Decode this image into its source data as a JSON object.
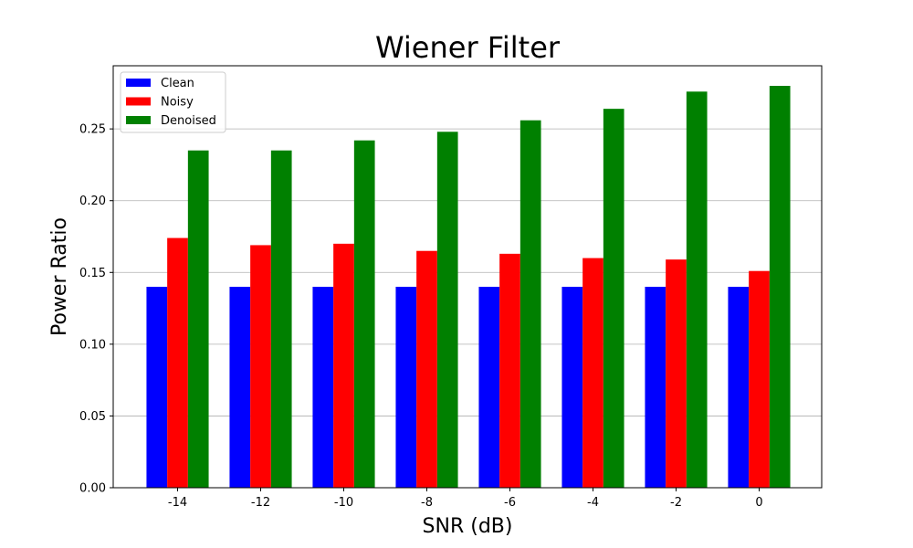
{
  "chart_data": {
    "type": "bar",
    "title": "Wiener Filter",
    "xlabel": "SNR (dB)",
    "ylabel": "Power Ratio",
    "categories": [
      "-14",
      "-12",
      "-10",
      "-8",
      "-6",
      "-4",
      "-2",
      "0"
    ],
    "series": [
      {
        "name": "Clean",
        "color": "#0000ff",
        "values": [
          0.14,
          0.14,
          0.14,
          0.14,
          0.14,
          0.14,
          0.14,
          0.14
        ]
      },
      {
        "name": "Noisy",
        "color": "#ff0000",
        "values": [
          0.174,
          0.169,
          0.17,
          0.165,
          0.163,
          0.16,
          0.159,
          0.151
        ]
      },
      {
        "name": "Denoised",
        "color": "#008000",
        "values": [
          0.235,
          0.235,
          0.242,
          0.248,
          0.256,
          0.264,
          0.276,
          0.28
        ]
      }
    ],
    "ylim": [
      0,
      0.294
    ],
    "yticks": [
      "0.00",
      "0.05",
      "0.10",
      "0.15",
      "0.20",
      "0.25"
    ],
    "ytick_values": [
      0,
      0.05,
      0.1,
      0.15,
      0.2,
      0.25
    ],
    "grid": "y",
    "legend_position": "top-left"
  }
}
